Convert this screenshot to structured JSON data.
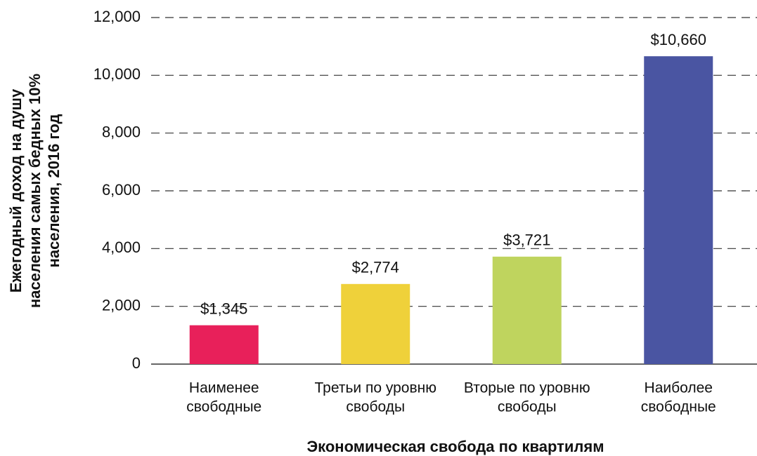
{
  "chart_data": {
    "type": "bar",
    "x_label": "Экономическая свобода по квартилям",
    "y_label": "Ежегодный доход на душу\nнаселения самых бедных 10%\nнаселения, 2016 год",
    "categories": [
      "Наименее\nсвободные",
      "Третьи по уровню\nсвободы",
      "Вторые по уровню\nсвободы",
      "Наиболее\nсвободные"
    ],
    "values": [
      1345,
      2774,
      3721,
      10660
    ],
    "value_labels": [
      "$1,345",
      "$2,774",
      "$3,721",
      "$10,660"
    ],
    "colors": [
      "#e8205a",
      "#efd13a",
      "#bfd45e",
      "#4a55a2"
    ],
    "ylim": [
      0,
      12000
    ],
    "yticks": [
      0,
      {
        "value": 2000,
        "label": "2,000"
      },
      {
        "value": 4000,
        "label": "4,000"
      },
      {
        "value": 6000,
        "label": "6,000"
      },
      {
        "value": 8000,
        "label": "8,000"
      },
      {
        "value": 10000,
        "label": "10,000"
      },
      {
        "value": 12000,
        "label": "12,000"
      }
    ],
    "grid": true
  }
}
